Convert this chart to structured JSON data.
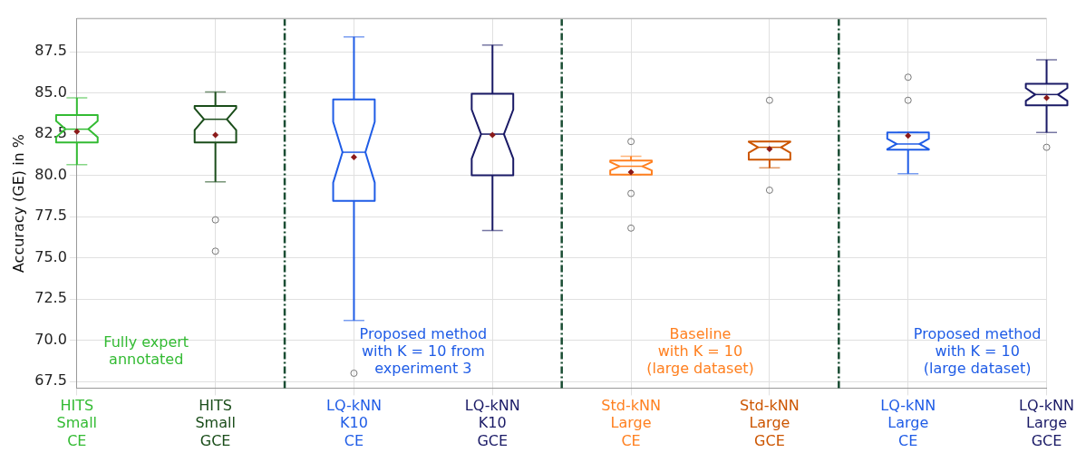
{
  "chart_data": {
    "type": "box",
    "ylabel": "Accuracy (GE) in %",
    "categories": [
      "HITS Small CE",
      "HITS Small GCE",
      "LQ-kNN K10 CE",
      "LQ-kNN K10 GCE",
      "Std-kNN Large CE",
      "Std-kNN Large GCE",
      "LQ-kNN Large CE",
      "LQ-kNN Large GCE"
    ],
    "colors": [
      "#33bb33",
      "#1a4d1a",
      "#1f5ce6",
      "#1a1a66",
      "#ff8020",
      "#cc5500",
      "#1f5ce6",
      "#1a1a66"
    ],
    "boxes": [
      {
        "low": 80.65,
        "q1": 82.0,
        "median": 82.8,
        "q3": 83.65,
        "high": 84.7,
        "mean": 82.65
      },
      {
        "low": 79.6,
        "q1": 82.0,
        "median": 83.4,
        "q3": 84.2,
        "high": 85.05,
        "mean": 82.45,
        "outliers": [
          77.3,
          75.4
        ]
      },
      {
        "low": 71.2,
        "q1": 78.45,
        "median": 81.4,
        "q3": 84.6,
        "high": 88.4,
        "mean": 81.1,
        "outliers": [
          68.0
        ]
      },
      {
        "low": 76.65,
        "q1": 80.0,
        "median": 82.5,
        "q3": 84.95,
        "high": 87.9,
        "mean": 82.45
      },
      {
        "low": 80.05,
        "q1": 80.05,
        "median": 80.55,
        "q3": 80.9,
        "high": 81.15,
        "mean": 80.2,
        "outliers": [
          82.05,
          78.9,
          76.8
        ]
      },
      {
        "low": 80.45,
        "q1": 80.95,
        "median": 81.7,
        "q3": 82.05,
        "high": 82.05,
        "mean": 81.6,
        "outliers": [
          84.55,
          79.1
        ]
      },
      {
        "low": 80.1,
        "q1": 81.55,
        "median": 81.9,
        "q3": 82.6,
        "high": 82.6,
        "mean": 82.4,
        "outliers": [
          85.95,
          84.55
        ]
      },
      {
        "low": 82.6,
        "q1": 84.25,
        "median": 84.9,
        "q3": 85.55,
        "high": 87.0,
        "mean": 84.7,
        "outliers": [
          81.7
        ]
      }
    ],
    "ylim": [
      67.1,
      89.5
    ],
    "yticks": [
      67.5,
      {
        "value": 70,
        "label": "70.0"
      },
      72.5,
      {
        "value": 75,
        "label": "75.0"
      },
      77.5,
      {
        "value": 80,
        "label": "80.0"
      },
      82.5,
      {
        "value": 85,
        "label": "85.0"
      },
      87.5
    ],
    "grid": true,
    "annotations": [
      "Fully expert\nannotated",
      "Proposed method\nwith K = 10 from\nexperiment 3",
      "Baseline\nwith K = 10\n(large dataset)",
      "Proposed method\nwith K = 10\n(large dataset)"
    ]
  }
}
